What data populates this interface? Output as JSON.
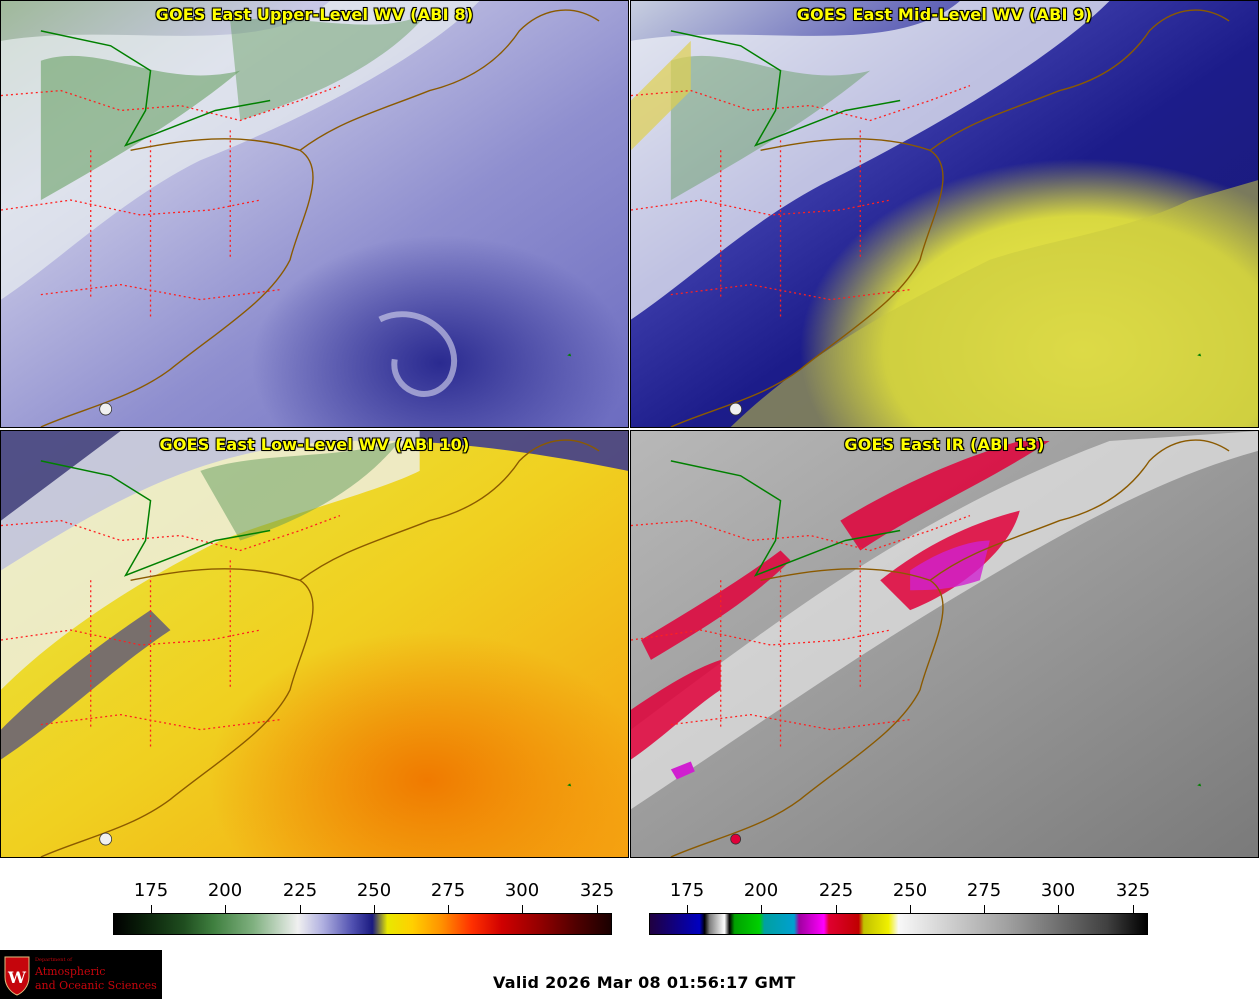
{
  "panels": {
    "upper": {
      "title": "GOES East Upper-Level WV (ABI 8)"
    },
    "mid": {
      "title": "GOES East Mid-Level WV (ABI 9)"
    },
    "low": {
      "title": "GOES East Low-Level WV (ABI 10)"
    },
    "ir": {
      "title": "GOES East IR (ABI 13)"
    }
  },
  "colorbars": {
    "wv": {
      "ticks": [
        "175",
        "200",
        "225",
        "250",
        "275",
        "300",
        "325"
      ]
    },
    "ir": {
      "ticks": [
        "175",
        "200",
        "225",
        "250",
        "275",
        "300",
        "325"
      ]
    }
  },
  "logo": {
    "dept": "Department of",
    "line1": "Atmospheric",
    "line2": "and Oceanic Sciences",
    "emblem": "W"
  },
  "footer": {
    "valid": "Valid 2026 Mar 08 01:56:17 GMT"
  },
  "colors": {
    "panel_title": "#ffff00",
    "state_borders": "#ff2020",
    "coastline": "#8b5a00",
    "intl_border": "#008000"
  }
}
